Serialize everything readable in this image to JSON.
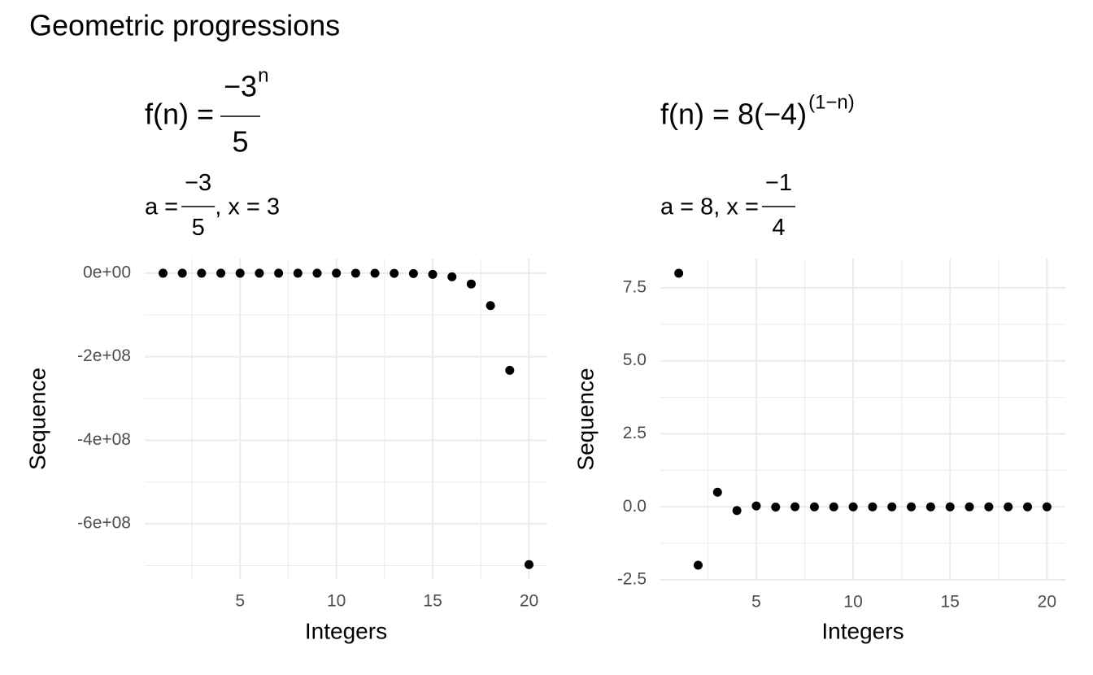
{
  "title": "Geometric progressions",
  "chart_data": [
    {
      "type": "scatter",
      "formula": {
        "lhs": "f(n) =",
        "numerator": "−3",
        "exponent": "n",
        "denominator": "5"
      },
      "parameters": {
        "lhs": "a =",
        "numerator": "−3",
        "denominator": "5",
        "rest": ", x = 3"
      },
      "x_label": "Integers",
      "y_label": "Sequence",
      "x": [
        1,
        2,
        3,
        4,
        5,
        6,
        7,
        8,
        9,
        10,
        11,
        12,
        13,
        14,
        15,
        16,
        17,
        18,
        19,
        20
      ],
      "values": [
        -0.6,
        -1.8,
        -5.4,
        -16.2,
        -48.6,
        -145.8,
        -437.4,
        -1312.2,
        -3936.6,
        -11809.8,
        -35429.4,
        -106288.2,
        -318864.6,
        -956593.8,
        -2869781.4,
        -8609344.2,
        -25828032.6,
        -77484097.8,
        -232452293.4,
        -697356880.2
      ],
      "color": "#000000",
      "xlim": [
        0.05,
        20.95
      ],
      "xticks": [
        5,
        10,
        15,
        20
      ],
      "x_minor_ticks": [
        2.5,
        7.5,
        12.5,
        17.5
      ],
      "ylim": [
        -732000000,
        34900000
      ],
      "yticks": [
        {
          "value": 0,
          "label": "0e+00"
        },
        {
          "value": -200000000,
          "label": "-2e+08"
        },
        {
          "value": -400000000,
          "label": "-4e+08"
        },
        {
          "value": -600000000,
          "label": "-6e+08"
        }
      ],
      "y_minor_ticks": [
        -100000000,
        -300000000,
        -500000000,
        -700000000
      ],
      "grid": true
    },
    {
      "type": "scatter",
      "formula": {
        "lhs": "f(n) = 8(−4)",
        "exponent": "(1−n)"
      },
      "parameters": {
        "lhs": "a = 8, x =",
        "numerator": "−1",
        "denominator": "4"
      },
      "x_label": "Integers",
      "y_label": "Sequence",
      "x": [
        1,
        2,
        3,
        4,
        5,
        6,
        7,
        8,
        9,
        10,
        11,
        12,
        13,
        14,
        15,
        16,
        17,
        18,
        19,
        20
      ],
      "values": [
        8,
        -2,
        0.5,
        -0.125,
        0.03125,
        -0.0078125,
        0.001953125,
        -0.00048828125,
        0.0001220703125,
        -3.0517578125e-05,
        7.62939453125e-06,
        -1.9073486328125e-06,
        4.76837158203125e-07,
        -1.1920928955078125e-07,
        2.9802322387695312e-08,
        -7.450580596923828e-09,
        1.862645149230957e-09,
        -4.656612873077393e-10,
        1.1641532182693481e-10,
        -2.9103830456733704e-11
      ],
      "color": "#000000",
      "xlim": [
        0.05,
        20.95
      ],
      "xticks": [
        5,
        10,
        15,
        20
      ],
      "x_minor_ticks": [
        2.5,
        7.5,
        12.5,
        17.5
      ],
      "ylim": [
        -2.5,
        8.5
      ],
      "yticks": [
        -2.5,
        {
          "value": 0,
          "label": "0.0"
        },
        2.5,
        {
          "value": 5,
          "label": "5.0"
        },
        7.5
      ],
      "y_minor_ticks": [
        -1.25,
        1.25,
        3.75,
        6.25
      ],
      "grid": true
    }
  ]
}
